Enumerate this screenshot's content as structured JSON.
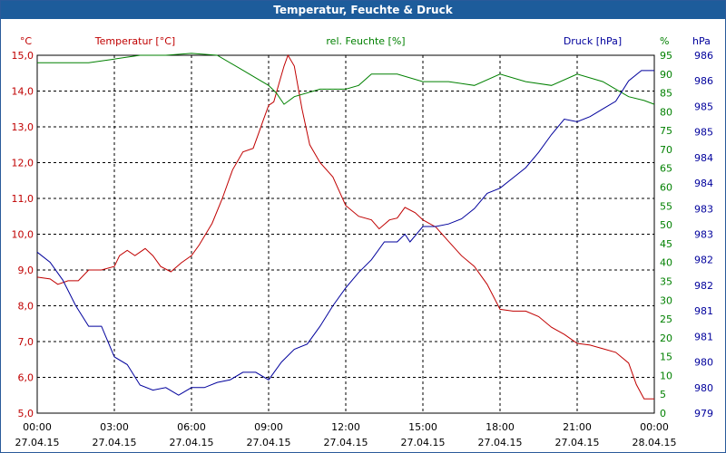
{
  "window_title": "Temperatur, Feuchte & Druck",
  "colors": {
    "temperature": "#c00000",
    "humidity": "#008000",
    "pressure": "#00009c",
    "grid": "#000000",
    "title_bar": "#1d5c9b"
  },
  "chart_data": {
    "type": "line",
    "title": "Temperatur, Feuchte & Druck",
    "x_ticks": [
      {
        "time": "00:00",
        "date": "27.04.15"
      },
      {
        "time": "03:00",
        "date": "27.04.15"
      },
      {
        "time": "06:00",
        "date": "27.04.15"
      },
      {
        "time": "09:00",
        "date": "27.04.15"
      },
      {
        "time": "12:00",
        "date": "27.04.15"
      },
      {
        "time": "15:00",
        "date": "27.04.15"
      },
      {
        "time": "18:00",
        "date": "27.04.15"
      },
      {
        "time": "21:00",
        "date": "27.04.15"
      },
      {
        "time": "00:00",
        "date": "28.04.15"
      }
    ],
    "x_range_hours": [
      0,
      24
    ],
    "axes": {
      "temperature": {
        "unit": "°C",
        "label": "Temperatur [°C]",
        "range": [
          5.0,
          15.0
        ],
        "ticks": [
          "5,0",
          "6,0",
          "7,0",
          "8,0",
          "9,0",
          "10,0",
          "11,0",
          "12,0",
          "13,0",
          "14,0",
          "15,0"
        ]
      },
      "humidity": {
        "unit": "%",
        "label": "rel. Feuchte [%]",
        "range": [
          0,
          95
        ],
        "ticks": [
          "0",
          "5",
          "10",
          "15",
          "20",
          "25",
          "30",
          "35",
          "40",
          "45",
          "50",
          "55",
          "60",
          "65",
          "70",
          "75",
          "80",
          "85",
          "90",
          "95"
        ]
      },
      "pressure": {
        "unit": "hPa",
        "label": "Druck [hPa]",
        "range": [
          979.5,
          986.5
        ],
        "ticks": [
          "979",
          "980",
          "980",
          "981",
          "981",
          "982",
          "982",
          "983",
          "983",
          "984",
          "984",
          "985",
          "985",
          "986",
          "986"
        ]
      }
    },
    "series": [
      {
        "name": "Temperatur [°C]",
        "axis": "temperature",
        "points": [
          [
            0,
            8.8
          ],
          [
            0.5,
            8.75
          ],
          [
            0.8,
            8.6
          ],
          [
            1.2,
            8.7
          ],
          [
            1.6,
            8.7
          ],
          [
            2.0,
            9.0
          ],
          [
            2.5,
            9.0
          ],
          [
            3.0,
            9.1
          ],
          [
            3.2,
            9.4
          ],
          [
            3.5,
            9.55
          ],
          [
            3.8,
            9.4
          ],
          [
            4.2,
            9.6
          ],
          [
            4.5,
            9.4
          ],
          [
            4.8,
            9.1
          ],
          [
            5.2,
            8.95
          ],
          [
            5.6,
            9.2
          ],
          [
            6.0,
            9.4
          ],
          [
            6.3,
            9.7
          ],
          [
            6.8,
            10.3
          ],
          [
            7.2,
            11.0
          ],
          [
            7.6,
            11.8
          ],
          [
            8.0,
            12.3
          ],
          [
            8.4,
            12.4
          ],
          [
            8.6,
            12.8
          ],
          [
            8.8,
            13.2
          ],
          [
            9.0,
            13.6
          ],
          [
            9.2,
            13.7
          ],
          [
            9.4,
            14.2
          ],
          [
            9.6,
            14.7
          ],
          [
            9.75,
            15.0
          ],
          [
            10.0,
            14.7
          ],
          [
            10.3,
            13.5
          ],
          [
            10.6,
            12.5
          ],
          [
            11.0,
            12.0
          ],
          [
            11.5,
            11.6
          ],
          [
            12.0,
            10.8
          ],
          [
            12.5,
            10.5
          ],
          [
            13.0,
            10.4
          ],
          [
            13.3,
            10.15
          ],
          [
            13.7,
            10.4
          ],
          [
            14.0,
            10.45
          ],
          [
            14.3,
            10.75
          ],
          [
            14.7,
            10.6
          ],
          [
            15.0,
            10.4
          ],
          [
            15.5,
            10.2
          ],
          [
            16.0,
            9.8
          ],
          [
            16.5,
            9.4
          ],
          [
            17.0,
            9.1
          ],
          [
            17.5,
            8.6
          ],
          [
            18.0,
            7.9
          ],
          [
            18.5,
            7.85
          ],
          [
            19.0,
            7.85
          ],
          [
            19.5,
            7.7
          ],
          [
            20.0,
            7.4
          ],
          [
            20.5,
            7.2
          ],
          [
            21.0,
            6.95
          ],
          [
            21.5,
            6.9
          ],
          [
            22.0,
            6.8
          ],
          [
            22.5,
            6.7
          ],
          [
            23.0,
            6.4
          ],
          [
            23.3,
            5.8
          ],
          [
            23.6,
            5.4
          ],
          [
            24.0,
            5.4
          ]
        ]
      },
      {
        "name": "rel. Feuchte [%]",
        "axis": "humidity",
        "points": [
          [
            0,
            93
          ],
          [
            1,
            93
          ],
          [
            2,
            93
          ],
          [
            3,
            94
          ],
          [
            4,
            95
          ],
          [
            5,
            95
          ],
          [
            6,
            95.5
          ],
          [
            7,
            95
          ],
          [
            8,
            91
          ],
          [
            8.5,
            89
          ],
          [
            9,
            87
          ],
          [
            9.3,
            85
          ],
          [
            9.6,
            82
          ],
          [
            10,
            84
          ],
          [
            11,
            86
          ],
          [
            12,
            86
          ],
          [
            12.5,
            87
          ],
          [
            13,
            90
          ],
          [
            14,
            90
          ],
          [
            15,
            88
          ],
          [
            16,
            88
          ],
          [
            17,
            87
          ],
          [
            18,
            90
          ],
          [
            19,
            88
          ],
          [
            20,
            87
          ],
          [
            21,
            90
          ],
          [
            22,
            88
          ],
          [
            22.5,
            86
          ],
          [
            23,
            84
          ],
          [
            23.6,
            83
          ],
          [
            24,
            82
          ]
        ]
      },
      {
        "name": "Druck [hPa]",
        "axis": "pressure",
        "points": [
          [
            0,
            982.65
          ],
          [
            0.5,
            982.45
          ],
          [
            1.0,
            982.1
          ],
          [
            1.5,
            981.6
          ],
          [
            2.0,
            981.2
          ],
          [
            2.5,
            981.2
          ],
          [
            3.0,
            980.6
          ],
          [
            3.5,
            980.45
          ],
          [
            4.0,
            980.05
          ],
          [
            4.5,
            979.95
          ],
          [
            5.0,
            980.0
          ],
          [
            5.5,
            979.85
          ],
          [
            6.0,
            980.0
          ],
          [
            6.5,
            980.0
          ],
          [
            7.0,
            980.1
          ],
          [
            7.5,
            980.15
          ],
          [
            8.0,
            980.3
          ],
          [
            8.5,
            980.3
          ],
          [
            9.0,
            980.15
          ],
          [
            9.5,
            980.5
          ],
          [
            10.0,
            980.75
          ],
          [
            10.5,
            980.85
          ],
          [
            11.0,
            981.2
          ],
          [
            11.5,
            981.6
          ],
          [
            12.0,
            981.95
          ],
          [
            12.5,
            982.25
          ],
          [
            13.0,
            982.5
          ],
          [
            13.5,
            982.85
          ],
          [
            14.0,
            982.85
          ],
          [
            14.3,
            983.0
          ],
          [
            14.5,
            982.85
          ],
          [
            15.0,
            983.15
          ],
          [
            15.5,
            983.15
          ],
          [
            16.0,
            983.2
          ],
          [
            16.5,
            983.3
          ],
          [
            17.0,
            983.5
          ],
          [
            17.5,
            983.8
          ],
          [
            18.0,
            983.9
          ],
          [
            18.5,
            984.1
          ],
          [
            19.0,
            984.3
          ],
          [
            19.5,
            984.6
          ],
          [
            20.0,
            984.95
          ],
          [
            20.5,
            985.25
          ],
          [
            21.0,
            985.2
          ],
          [
            21.5,
            985.3
          ],
          [
            22.0,
            985.45
          ],
          [
            22.5,
            985.6
          ],
          [
            23.0,
            986.0
          ],
          [
            23.5,
            986.2
          ],
          [
            24.0,
            986.2
          ]
        ]
      }
    ]
  }
}
